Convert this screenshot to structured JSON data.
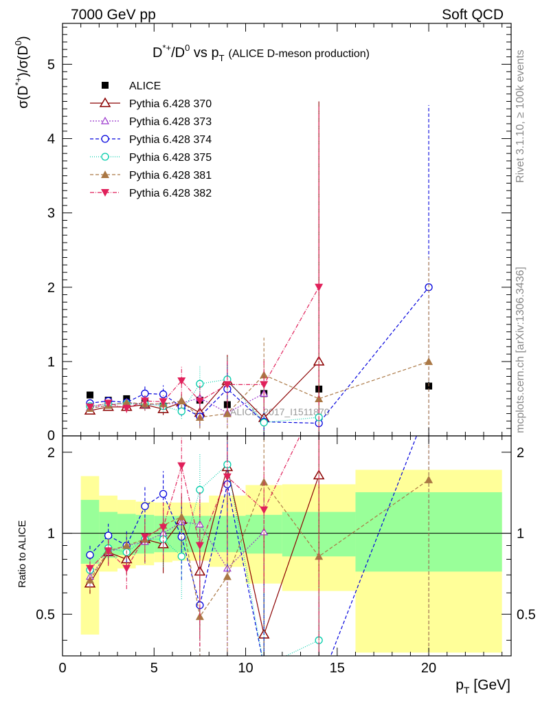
{
  "header": {
    "left": "7000 GeV pp",
    "right": "Soft QCD"
  },
  "side_text": {
    "rivet": "Rivet 3.1.10, ≥ 100k events",
    "mcplots": "mcplots.cern.ch [arXiv:1306.3436]"
  },
  "chart_data": {
    "type": "scatter",
    "title": {
      "main_a": "D",
      "main_sup": "*+",
      "main_b": "/D",
      "main_sup2": "0",
      "main_c": " vs p",
      "main_sub": "T",
      "small": "(ALICE D-meson production)"
    },
    "watermark": "ALICE_2017_I1511870",
    "xlabel": {
      "base": "p",
      "sub": "T",
      "rest": " [GeV]"
    },
    "ylabel_top": {
      "a": "σ(D",
      "sup": "*+",
      "b": ")/σ(D",
      "sup2": "0",
      "c": ")"
    },
    "ylabel_bottom": "Ratio to ALICE",
    "xlim": [
      0,
      24.5
    ],
    "ylim_top": [
      0,
      5.55
    ],
    "ylim_bottom": [
      0.35,
      2.3
    ],
    "x_ticks": [
      "0",
      "5",
      "10",
      "15",
      "20"
    ],
    "y_ticks_top": [
      "0",
      "1",
      "2",
      "3",
      "4",
      "5"
    ],
    "y_ticks_bottom": [
      "0.5",
      "1",
      "2"
    ],
    "legend": [
      "ALICE",
      "Pythia 6.428 370",
      "Pythia 6.428 373",
      "Pythia 6.428 374",
      "Pythia 6.428 375",
      "Pythia 6.428 381",
      "Pythia 6.428 382"
    ],
    "x": [
      1.5,
      2.5,
      3.5,
      4.5,
      5.5,
      6.5,
      7.5,
      9,
      11,
      14,
      20
    ],
    "data": {
      "name": "ALICE",
      "values": [
        0.55,
        0.48,
        0.5,
        0.45,
        0.4,
        0.4,
        0.48,
        0.42,
        0.57,
        0.63,
        0.67
      ],
      "errors": [
        0.03,
        0.03,
        0.03,
        0.02,
        0.02,
        0.02,
        0.03,
        0.03,
        0.05,
        0.05,
        0.06
      ],
      "band_green": [
        [
          1,
          2,
          0.77,
          1.33
        ],
        [
          2,
          3,
          0.81,
          1.2
        ],
        [
          3,
          4,
          0.83,
          1.18
        ],
        [
          4,
          5,
          0.84,
          1.17
        ],
        [
          5,
          6,
          0.85,
          1.16
        ],
        [
          6,
          7,
          0.85,
          1.16
        ],
        [
          7,
          8,
          0.85,
          1.16
        ],
        [
          8,
          10,
          0.85,
          1.16
        ],
        [
          10,
          12,
          0.84,
          1.17
        ],
        [
          12,
          16,
          0.82,
          1.2
        ],
        [
          16,
          24,
          0.72,
          1.42
        ]
      ],
      "band_yellow": [
        [
          1,
          1.5,
          0.42,
          1.63
        ],
        [
          1.5,
          2,
          0.42,
          1.63
        ],
        [
          2,
          3,
          0.72,
          1.38
        ],
        [
          3,
          4,
          0.74,
          1.33
        ],
        [
          4,
          5,
          0.76,
          1.31
        ],
        [
          5,
          6,
          0.78,
          1.3
        ],
        [
          6,
          7,
          0.79,
          1.3
        ],
        [
          7,
          8,
          0.79,
          1.3
        ],
        [
          8,
          10,
          0.75,
          1.38
        ],
        [
          10,
          12,
          0.65,
          1.51
        ],
        [
          12,
          16,
          0.61,
          1.52
        ],
        [
          16,
          24,
          0.36,
          1.72
        ]
      ]
    },
    "series": [
      {
        "name": "Pythia 6.428 370",
        "color": "#8b0000",
        "marker": "triangle-open",
        "dash": "",
        "values": [
          0.34,
          0.39,
          0.39,
          0.42,
          0.36,
          0.45,
          0.31,
          0.74,
          0.24,
          1.0,
          null
        ],
        "ratio": [
          0.65,
          0.85,
          0.8,
          0.95,
          0.91,
          1.12,
          0.72,
          1.76,
          0.42,
          1.64,
          null
        ],
        "err": [
          0.03,
          0.04,
          0.05,
          0.08,
          0.08,
          0.1,
          0.15,
          0.35,
          0.35,
          3.5,
          null
        ]
      },
      {
        "name": "Pythia 6.428 373",
        "color": "#9933cc",
        "marker": "triangle-open-small",
        "dash": "2,2",
        "values": [
          0.38,
          0.41,
          0.45,
          0.42,
          0.43,
          0.44,
          0.51,
          0.31,
          0.57,
          null,
          null
        ],
        "ratio": [
          0.69,
          0.85,
          0.9,
          0.93,
          1.0,
          1.1,
          1.08,
          0.74,
          1.01,
          null,
          null
        ],
        "err": [
          0.03,
          0.04,
          0.05,
          0.07,
          0.08,
          0.1,
          0.15,
          0.2,
          0.2,
          null,
          null
        ]
      },
      {
        "name": "Pythia 6.428 374",
        "color": "#0000dd",
        "marker": "circle-open",
        "dash": "5,3",
        "values": [
          0.44,
          0.47,
          0.45,
          0.57,
          0.56,
          0.39,
          0.26,
          0.63,
          0.19,
          0.17,
          2.0
        ],
        "ratio": [
          0.83,
          0.98,
          0.9,
          1.26,
          1.4,
          0.97,
          0.54,
          1.52,
          0.32,
          0.27,
          3.0
        ],
        "err": [
          0.04,
          0.05,
          0.06,
          0.1,
          0.12,
          0.12,
          0.15,
          0.35,
          0.2,
          0.2,
          2.45
        ]
      },
      {
        "name": "Pythia 6.428 375",
        "color": "#00ccaa",
        "marker": "circle-open",
        "dash": "1,2",
        "values": [
          0.4,
          0.43,
          0.43,
          0.43,
          0.4,
          0.33,
          0.7,
          0.76,
          0.18,
          0.25,
          null
        ],
        "ratio": [
          0.73,
          0.88,
          0.85,
          0.95,
          0.95,
          0.82,
          1.45,
          1.8,
          0.32,
          0.4,
          null
        ],
        "err": [
          0.03,
          0.04,
          0.05,
          0.07,
          0.08,
          0.1,
          0.25,
          0.3,
          0.2,
          0.2,
          null
        ]
      },
      {
        "name": "Pythia 6.428 381",
        "color": "#aa7744",
        "marker": "triangle-filled",
        "dash": "5,3",
        "values": [
          0.37,
          0.41,
          0.45,
          0.43,
          0.43,
          0.47,
          0.25,
          0.3,
          0.82,
          0.5,
          1.0
        ],
        "ratio": [
          0.67,
          0.86,
          0.9,
          0.95,
          1.07,
          1.15,
          0.49,
          0.69,
          1.55,
          0.82,
          1.58
        ],
        "err": [
          0.03,
          0.04,
          0.05,
          0.07,
          0.08,
          0.1,
          0.15,
          0.2,
          0.5,
          0.6,
          1.4
        ]
      },
      {
        "name": "Pythia 6.428 382",
        "color": "#e0205a",
        "marker": "triangle-down-filled",
        "dash": "6,2,1,2",
        "values": [
          0.39,
          0.44,
          0.37,
          0.47,
          0.46,
          0.74,
          0.47,
          0.69,
          0.69,
          2.0,
          null
        ],
        "ratio": [
          0.74,
          0.86,
          0.74,
          0.97,
          1.05,
          1.78,
          0.9,
          1.62,
          1.22,
          3.2,
          null
        ],
        "err": [
          0.04,
          0.05,
          0.06,
          0.08,
          0.1,
          0.2,
          0.25,
          0.35,
          0.35,
          2.45,
          null
        ]
      }
    ]
  }
}
